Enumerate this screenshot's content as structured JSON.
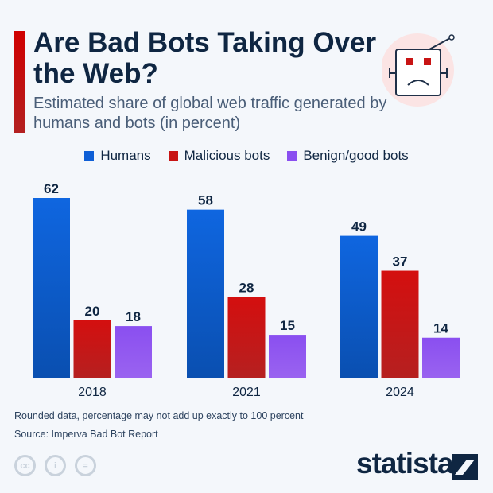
{
  "header": {
    "title": "Are Bad Bots Taking Over the Web?",
    "subtitle": "Estimated share of global web traffic generated by humans and bots (in percent)"
  },
  "colors": {
    "accent": "#cc0000",
    "humans": "#0f5fd6",
    "malicious": "#c81414",
    "benign": "#8a4ff0"
  },
  "chart_data": {
    "type": "bar",
    "title": "Are Bad Bots Taking Over the Web?",
    "categories": [
      "2018",
      "2021",
      "2024"
    ],
    "series": [
      {
        "name": "Humans",
        "values": [
          62,
          58,
          49
        ],
        "color": "#0f5fd6"
      },
      {
        "name": "Malicious bots",
        "values": [
          20,
          28,
          37
        ],
        "color": "#c81414"
      },
      {
        "name": "Benign/good bots",
        "values": [
          18,
          15,
          14
        ],
        "color": "#8a4ff0"
      }
    ],
    "ylim": [
      0,
      62
    ],
    "grid": false,
    "legend": "top-center",
    "data_labels": true
  },
  "footer": {
    "note": "Rounded data, percentage may not add up exactly to 100 percent",
    "source": "Source: Imperva Bad Bot Report",
    "logo": "statista",
    "license_icons": [
      "cc",
      "by",
      "nd"
    ]
  }
}
